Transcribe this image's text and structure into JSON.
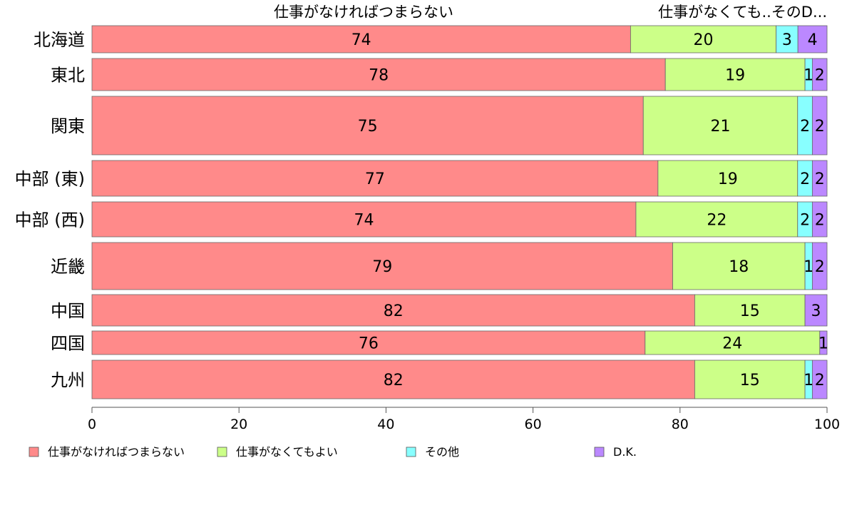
{
  "chart_data": {
    "type": "bar",
    "orientation": "horizontal",
    "stacked": true,
    "top_labels": [
      "仕事がなければつまらない",
      "仕事がなくても..そのD..."
    ],
    "categories": [
      "北海道",
      "東北",
      "関東",
      "中部 (東)",
      "中部 (西)",
      "近畿",
      "中国",
      "四国",
      "九州"
    ],
    "series": [
      {
        "name": "仕事がなければつまらない",
        "color": "#FF8A8A",
        "values": [
          74,
          78,
          75,
          77,
          74,
          79,
          82,
          76,
          82
        ]
      },
      {
        "name": "仕事がなくてもよい",
        "color": "#CCFF88",
        "values": [
          20,
          19,
          21,
          19,
          22,
          18,
          15,
          24,
          15
        ]
      },
      {
        "name": "その他",
        "color": "#88FFFF",
        "values": [
          3,
          1,
          2,
          2,
          2,
          1,
          0,
          0,
          1
        ]
      },
      {
        "name": "D.K.",
        "color": "#BB88FF",
        "values": [
          4,
          2,
          2,
          2,
          2,
          2,
          3,
          1,
          2
        ]
      }
    ],
    "segment_labels": [
      [
        "74",
        "20",
        "3",
        "4"
      ],
      [
        "78",
        "19",
        "1",
        "2"
      ],
      [
        "75",
        "21",
        "2",
        "2"
      ],
      [
        "77",
        "19",
        "2",
        "2"
      ],
      [
        "74",
        "22",
        "2",
        "2"
      ],
      [
        "79",
        "18",
        "1",
        "2"
      ],
      [
        "82",
        "15",
        "",
        "3"
      ],
      [
        "76",
        "24",
        "",
        "1"
      ],
      [
        "82",
        "15",
        "1",
        "2"
      ]
    ],
    "xlim": [
      0,
      100
    ],
    "xticks": [
      0,
      20,
      40,
      60,
      80,
      100
    ],
    "legend_position": "bottom"
  }
}
